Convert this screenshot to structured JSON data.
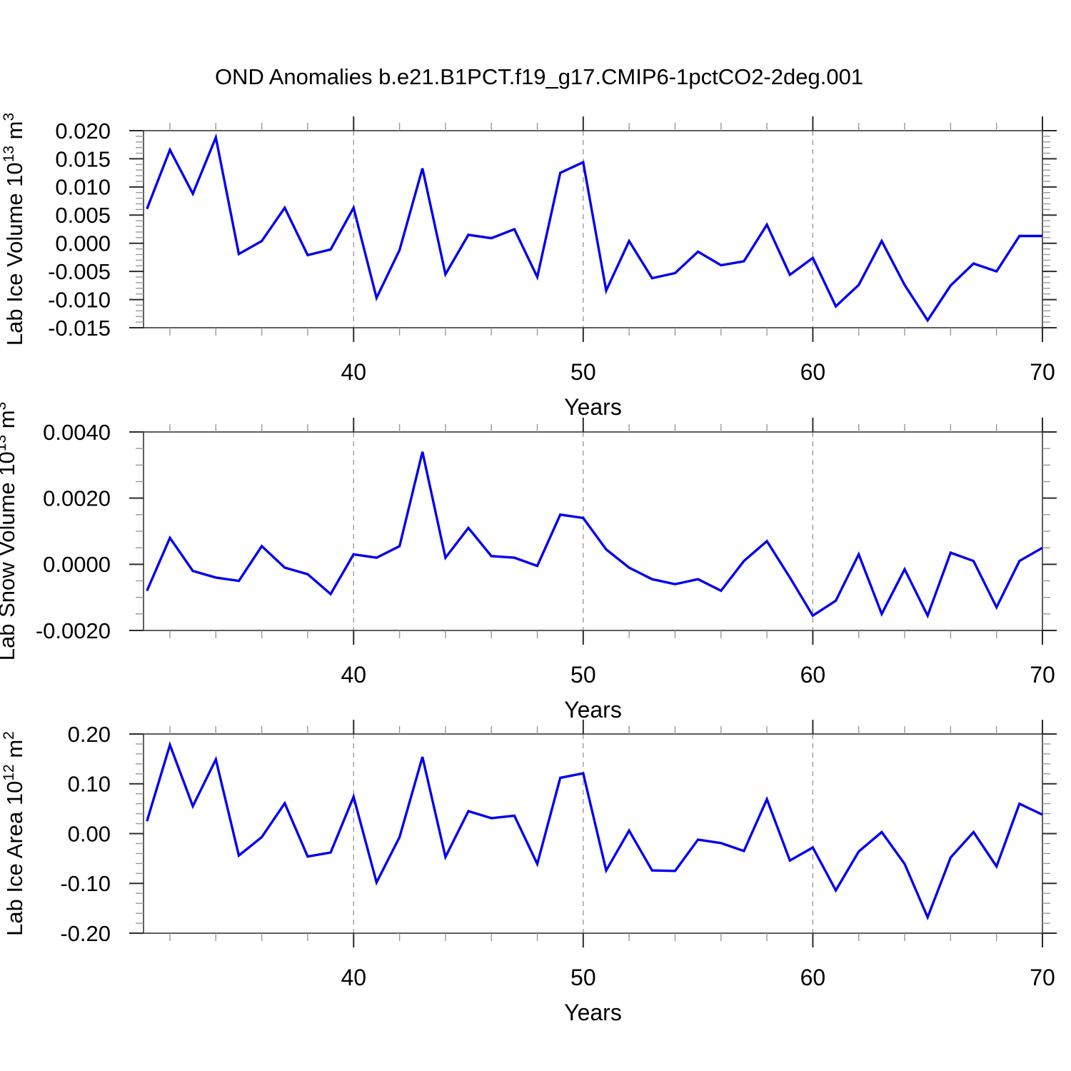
{
  "title": "OND Anomalies b.e21.B1PCT.f19_g17.CMIP6-1pctCO2-2deg.001",
  "colors": {
    "line": "#0000f0",
    "frame": "#4d4d4d",
    "tick_major": "#2b2b2b",
    "tick_minor": "#999999",
    "grid": "#8c8c8c",
    "text": "#000000",
    "background": "#ffffff"
  },
  "x_axis": {
    "label": "Years",
    "range": [
      30.85,
      70
    ],
    "major_ticks": [
      40,
      50,
      60,
      70
    ],
    "major_tick_labels": [
      "40",
      "50",
      "60",
      "70"
    ],
    "minor_ticks": [
      32,
      34,
      36,
      38,
      42,
      44,
      46,
      48,
      52,
      54,
      56,
      58,
      62,
      64,
      66,
      68
    ],
    "gridlines": [
      40,
      50,
      60
    ],
    "years": [
      31,
      32,
      33,
      34,
      35,
      36,
      37,
      38,
      39,
      40,
      41,
      42,
      43,
      44,
      45,
      46,
      47,
      48,
      49,
      50,
      51,
      52,
      53,
      54,
      55,
      56,
      57,
      58,
      59,
      60,
      61,
      62,
      63,
      64,
      65,
      66,
      67,
      68,
      69,
      70
    ]
  },
  "chart_data": [
    {
      "type": "line",
      "name": "lab-ice-volume",
      "ylabel_parts": [
        {
          "text": "Lab Ice Volume 10"
        },
        {
          "sup": "13"
        },
        {
          "text": " m"
        },
        {
          "sup": "3"
        }
      ],
      "ylim": [
        -0.015,
        0.02
      ],
      "ymajor_values": [
        0.02,
        0.015,
        0.01,
        0.005,
        0.0,
        -0.005,
        -0.01,
        -0.015
      ],
      "ymajor_labels": [
        "0.020",
        "0.015",
        "0.010",
        "0.005",
        "0.000",
        "-0.005",
        "-0.010",
        "-0.015"
      ],
      "yminor_step": 0.001,
      "values": [
        0.0061,
        0.0166,
        0.0088,
        0.0188,
        -0.0019,
        0.0004,
        0.0063,
        -0.0021,
        -0.0011,
        0.0063,
        -0.0097,
        -0.0012,
        0.0133,
        -0.0055,
        0.0015,
        0.0009,
        0.0025,
        -0.006,
        0.0125,
        0.0144,
        -0.0084,
        0.0004,
        -0.0062,
        -0.0053,
        -0.0015,
        -0.0039,
        -0.0032,
        0.0033,
        -0.0056,
        -0.0026,
        -0.0112,
        -0.0074,
        0.0004,
        -0.0074,
        -0.0137,
        -0.0075,
        -0.0036,
        -0.005,
        0.0013,
        0.0013
      ]
    },
    {
      "type": "line",
      "name": "lab-snow-volume",
      "ylabel_parts": [
        {
          "text": "Lab Snow Volume 10"
        },
        {
          "sup": "13"
        },
        {
          "text": " m"
        },
        {
          "sup": "3"
        }
      ],
      "ylim": [
        -0.002,
        0.004
      ],
      "ymajor_values": [
        0.004,
        0.002,
        0.0,
        -0.002
      ],
      "ymajor_labels": [
        "0.0040",
        "0.0020",
        "0.0000",
        "-0.0020"
      ],
      "yminor_step": 0.0005,
      "values": [
        -0.0008,
        0.0008,
        -0.0002,
        -0.0004,
        -0.0005,
        0.00055,
        -0.0001,
        -0.0003,
        -0.0009,
        0.0003,
        0.0002,
        0.00055,
        0.0034,
        0.0002,
        0.0011,
        0.00025,
        0.0002,
        -5e-05,
        0.0015,
        0.0014,
        0.00045,
        -0.0001,
        -0.00045,
        -0.0006,
        -0.00045,
        -0.0008,
        0.0001,
        0.0007,
        -0.0004,
        -0.00155,
        -0.0011,
        0.0003,
        -0.0015,
        -0.00015,
        -0.00155,
        0.00035,
        0.0001,
        -0.0013,
        0.0001,
        0.0005
      ]
    },
    {
      "type": "line",
      "name": "lab-ice-area",
      "ylabel_parts": [
        {
          "text": "Lab Ice Area 10"
        },
        {
          "sup": "12"
        },
        {
          "text": " m"
        },
        {
          "sup": "2"
        }
      ],
      "ylim": [
        -0.2,
        0.2
      ],
      "ymajor_values": [
        0.2,
        0.1,
        0.0,
        -0.1,
        -0.2
      ],
      "ymajor_labels": [
        "0.20",
        "0.10",
        "0.00",
        "-0.10",
        "-0.20"
      ],
      "yminor_step": 0.02,
      "values": [
        0.025,
        0.178,
        0.055,
        0.149,
        -0.044,
        -0.007,
        0.061,
        -0.046,
        -0.038,
        0.074,
        -0.098,
        -0.007,
        0.154,
        -0.047,
        0.045,
        0.031,
        0.036,
        -0.061,
        0.112,
        0.121,
        -0.074,
        0.006,
        -0.074,
        -0.075,
        -0.012,
        -0.019,
        -0.035,
        0.069,
        -0.054,
        -0.028,
        -0.114,
        -0.036,
        0.003,
        -0.061,
        -0.168,
        -0.048,
        0.003,
        -0.066,
        0.06,
        0.038
      ]
    }
  ]
}
